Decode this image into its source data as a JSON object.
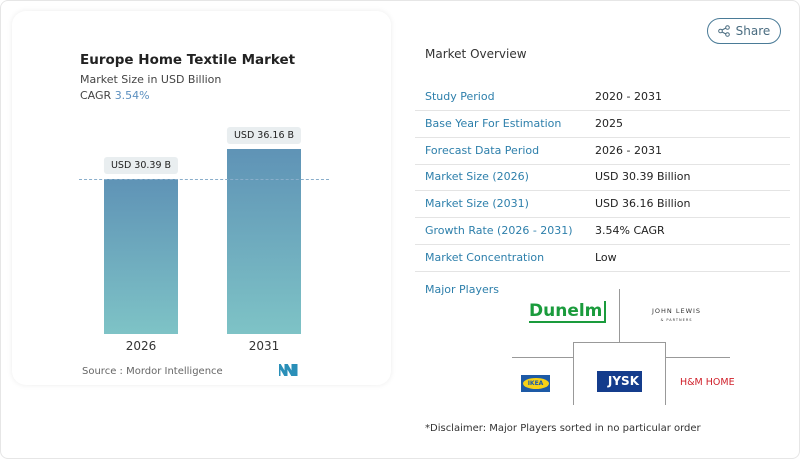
{
  "chart_card": {
    "title": "Europe Home Textile Market",
    "subtitle": "Market Size in USD Billion",
    "cagr_label": "CAGR",
    "cagr_value": "3.54%",
    "source": "Source :  Mordor Intelligence"
  },
  "chart_data": {
    "type": "bar",
    "title": "Europe Home Textile Market",
    "ylabel": "Market Size in USD Billion",
    "categories": [
      "2026",
      "2031"
    ],
    "values": [
      30.39,
      36.16
    ],
    "data_labels": [
      "USD 30.39 B",
      "USD 36.16 B"
    ],
    "colors": {
      "bar_top": "#5f93b6",
      "bar_bottom": "#7ec3c6"
    }
  },
  "share": {
    "label": "Share",
    "icon": "share-icon"
  },
  "overview": {
    "title": "Market Overview",
    "rows": [
      {
        "label": "Study Period",
        "value": "2020 - 2031"
      },
      {
        "label": "Base Year For Estimation",
        "value": "2025"
      },
      {
        "label": "Forecast Data Period",
        "value": "2026 - 2031"
      },
      {
        "label": "Market Size (2026)",
        "value": "USD 30.39 Billion"
      },
      {
        "label": "Market Size (2031)",
        "value": "USD 36.16 Billion"
      },
      {
        "label": "Growth Rate (2026 - 2031)",
        "value": "3.54% CAGR"
      },
      {
        "label": "Market Concentration",
        "value": "Low"
      }
    ]
  },
  "major_players": {
    "title": "Major Players",
    "players": [
      "Dunelm",
      "JOHN LEWIS & PARTNERS",
      "IKEA",
      "JYSK",
      "H&M HOME"
    ],
    "disclaimer": "*Disclaimer: Major Players sorted in no particular order"
  }
}
